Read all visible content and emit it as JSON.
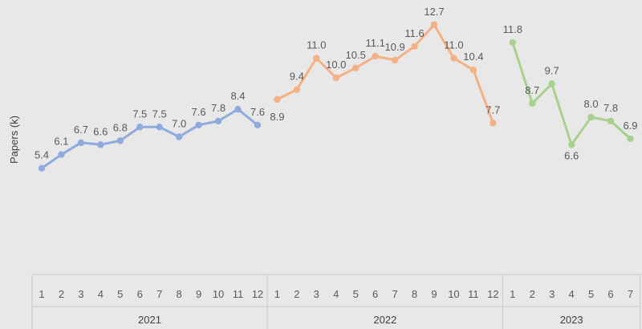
{
  "chart_data": {
    "type": "line",
    "ylabel": "Papers (k)",
    "ylim": [
      0,
      14
    ],
    "grid": false,
    "groups": [
      {
        "name": "2021",
        "color": "#8faadc",
        "x": [
          "1",
          "2",
          "3",
          "4",
          "5",
          "6",
          "7",
          "8",
          "9",
          "10",
          "11",
          "12"
        ],
        "values": [
          5.4,
          6.1,
          6.7,
          6.6,
          6.8,
          7.5,
          7.5,
          7.0,
          7.6,
          7.8,
          8.4,
          7.6
        ]
      },
      {
        "name": "2022",
        "color": "#f4b183",
        "x": [
          "1",
          "2",
          "3",
          "4",
          "5",
          "6",
          "7",
          "8",
          "9",
          "10",
          "11",
          "12"
        ],
        "values": [
          8.9,
          9.4,
          11.0,
          10.0,
          10.5,
          11.1,
          10.9,
          11.6,
          12.7,
          11.0,
          10.4,
          7.7
        ]
      },
      {
        "name": "2023",
        "color": "#a9d18e",
        "x": [
          "1",
          "2",
          "3",
          "4",
          "5",
          "6",
          "7"
        ],
        "values": [
          11.8,
          8.7,
          9.7,
          6.6,
          8.0,
          7.8,
          6.9
        ]
      }
    ]
  }
}
